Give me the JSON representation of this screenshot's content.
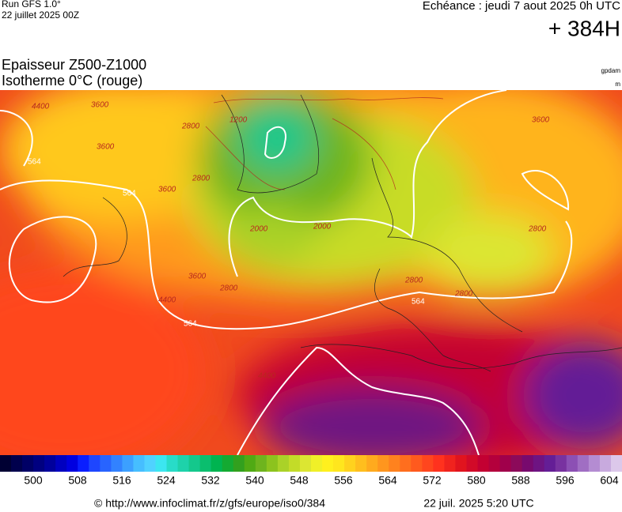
{
  "header": {
    "run": "Run GFS 1.0°",
    "date": "22 juillet 2025 00Z",
    "valid": "Echéance : jeudi 7 aout 2025 0h UTC",
    "lead": "+ 384H"
  },
  "title": {
    "line1": "Epaisseur Z500-Z1000",
    "line2": "Isotherme 0°C (rouge)"
  },
  "units": [
    "gpdam",
    "m"
  ],
  "map": {
    "contour_labels": [
      "4400",
      "3600",
      "564",
      "3600",
      "564",
      "2800",
      "1200",
      "2800",
      "2000",
      "2000",
      "3600",
      "564",
      "2800",
      "3600",
      "3600",
      "2800",
      "2800",
      "564",
      "4400",
      "4400",
      "2800"
    ]
  },
  "colorbar": {
    "labels": [
      500,
      508,
      516,
      524,
      532,
      540,
      548,
      556,
      564,
      572,
      580,
      588,
      596,
      604
    ],
    "colors": [
      "#000033",
      "#00004d",
      "#000066",
      "#000080",
      "#00009c",
      "#0000c0",
      "#0000e0",
      "#0a1eff",
      "#1e46ff",
      "#2864ff",
      "#3282ff",
      "#3ca0ff",
      "#46beff",
      "#50d2ff",
      "#3ce6f0",
      "#28dcc8",
      "#1ed2aa",
      "#14c88c",
      "#0abe6e",
      "#00b450",
      "#14aa32",
      "#32a01e",
      "#50aa14",
      "#6eb41e",
      "#8cc31e",
      "#aad228",
      "#c3dc28",
      "#dce632",
      "#f0f028",
      "#fff01e",
      "#ffe61e",
      "#ffd21e",
      "#ffbe1e",
      "#ffaa1e",
      "#ff961e",
      "#ff821e",
      "#ff6e1e",
      "#ff5a1e",
      "#ff461e",
      "#ff321e",
      "#f0231e",
      "#e1141e",
      "#d20a28",
      "#c30032",
      "#b4003c",
      "#a0004b",
      "#8c0a5a",
      "#780a6e",
      "#6e1482",
      "#641e96",
      "#7832a0",
      "#8c50b4",
      "#a06ec3",
      "#b48cd2",
      "#c8aade",
      "#dcc8ea"
    ]
  },
  "footer": {
    "url": "© http://www.infoclimat.fr/z/gfs/europe/iso0/384",
    "timestamp": "22 juil. 2025  5:20 UTC"
  }
}
